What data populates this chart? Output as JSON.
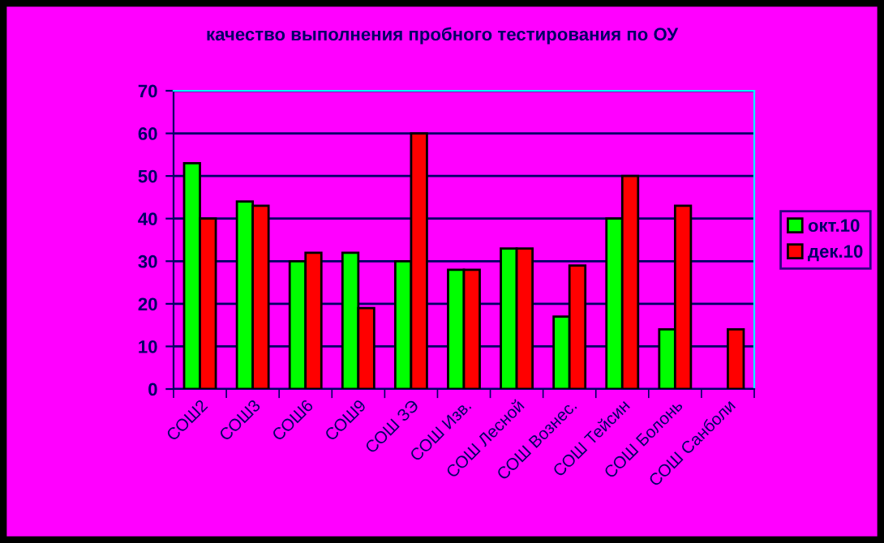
{
  "chart_data": {
    "type": "bar",
    "title": "качество выполнения пробного тестирования по ОУ",
    "categories": [
      "СОШ2",
      "СОШ3",
      "СОШ6",
      "СОШ9",
      "СОШ ЗЭ",
      "СОШ Изв.",
      "СОШ Лесной",
      "СОШ Вознес.",
      "СОШ Тейсин",
      "СОШ Болонь",
      "СОШ Санболи"
    ],
    "series": [
      {
        "name": "окт.10",
        "color": "#00ff00",
        "values": [
          53,
          44,
          30,
          32,
          30,
          28,
          33,
          17,
          40,
          14,
          null
        ]
      },
      {
        "name": "дек.10",
        "color": "#ff0000",
        "values": [
          40,
          43,
          32,
          19,
          60,
          28,
          33,
          29,
          50,
          43,
          14
        ]
      }
    ],
    "ylim": [
      0,
      70
    ],
    "yticks": [
      0,
      10,
      20,
      30,
      40,
      50,
      60,
      70
    ],
    "grid": "y",
    "legend": "right"
  }
}
